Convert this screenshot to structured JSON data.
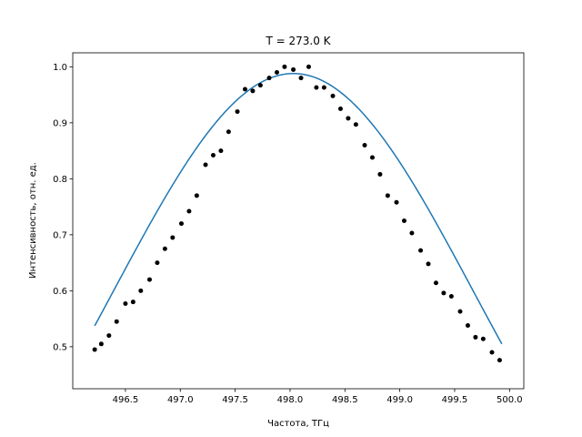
{
  "chart_data": {
    "type": "scatter",
    "title": "T = 273.0 K",
    "xlabel": "Частота, ТГц",
    "ylabel": "Интенсивность, отн. ед.",
    "xlim": [
      496.02,
      500.13
    ],
    "ylim": [
      0.425,
      1.025
    ],
    "x_ticks": [
      496.5,
      497.0,
      497.5,
      498.0,
      498.5,
      499.0,
      499.5,
      500.0
    ],
    "x_tick_labels": [
      "496.5",
      "497.0",
      "497.5",
      "498.0",
      "498.5",
      "499.0",
      "499.5",
      "500.0"
    ],
    "y_ticks": [
      0.5,
      0.6,
      0.7,
      0.8,
      0.9,
      1.0
    ],
    "y_tick_labels": [
      "0.5",
      "0.6",
      "0.7",
      "0.8",
      "0.9",
      "1.0"
    ],
    "grid": false,
    "series": [
      {
        "kind": "scatter",
        "color": "#000000",
        "x": [
          496.22,
          496.28,
          496.35,
          496.42,
          496.5,
          496.57,
          496.64,
          496.72,
          496.79,
          496.86,
          496.93,
          497.01,
          497.08,
          497.15,
          497.23,
          497.3,
          497.37,
          497.44,
          497.52,
          497.59,
          497.66,
          497.73,
          497.81,
          497.88,
          497.95,
          498.03,
          498.1,
          498.17,
          498.24,
          498.31,
          498.39,
          498.46,
          498.53,
          498.6,
          498.68,
          498.75,
          498.82,
          498.89,
          498.97,
          499.04,
          499.11,
          499.19,
          499.26,
          499.33,
          499.4,
          499.47,
          499.55,
          499.62,
          499.69,
          499.76,
          499.84,
          499.91
        ],
        "y": [
          0.495,
          0.505,
          0.52,
          0.545,
          0.577,
          0.58,
          0.6,
          0.62,
          0.65,
          0.675,
          0.695,
          0.72,
          0.742,
          0.77,
          0.825,
          0.842,
          0.85,
          0.884,
          0.92,
          0.96,
          0.957,
          0.967,
          0.98,
          0.99,
          1.0,
          0.995,
          0.98,
          1.0,
          0.963,
          0.963,
          0.948,
          0.925,
          0.908,
          0.897,
          0.86,
          0.838,
          0.808,
          0.77,
          0.758,
          0.725,
          0.703,
          0.672,
          0.648,
          0.614,
          0.596,
          0.59,
          0.563,
          0.538,
          0.517,
          0.514,
          0.49,
          0.476
        ]
      },
      {
        "kind": "line",
        "color": "#1f77b4",
        "center": 498.03,
        "amplitude": 0.988,
        "sigma": 1.64,
        "x_range": [
          496.22,
          499.93
        ]
      }
    ]
  }
}
